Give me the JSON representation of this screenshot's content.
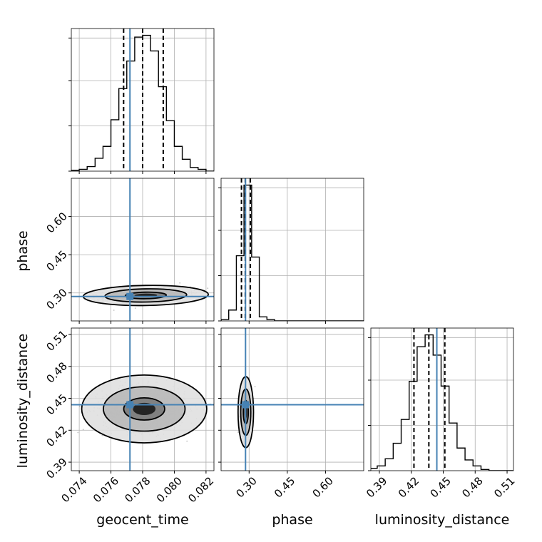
{
  "chart_data": {
    "type": "corner",
    "parameters": [
      "geocent_time",
      "phase",
      "luminosity_distance"
    ],
    "axis_labels": [
      "geocent_time",
      "phase",
      "luminosity_distance"
    ],
    "ranges": {
      "geocent_time": [
        0.0735,
        0.0825
      ],
      "phase": [
        0.19,
        0.75
      ],
      "luminosity_distance": [
        0.382,
        0.516
      ]
    },
    "ticks": {
      "geocent_time": {
        "values": [
          0.074,
          0.076,
          0.078,
          0.08,
          0.082
        ],
        "labels": [
          "0.074",
          "0.076",
          "0.078",
          "0.080",
          "0.082"
        ]
      },
      "phase": {
        "values": [
          0.3,
          0.45,
          0.6
        ],
        "labels": [
          "0.30",
          "0.45",
          "0.60"
        ]
      },
      "luminosity_distance": {
        "values": [
          0.39,
          0.42,
          0.45,
          0.48,
          0.51
        ],
        "labels": [
          "0.39",
          "0.42",
          "0.45",
          "0.48",
          "0.51"
        ]
      }
    },
    "truths": {
      "geocent_time": 0.0772,
      "phase": 0.286,
      "luminosity_distance": 0.444
    },
    "quantiles": {
      "geocent_time": [
        0.0768,
        0.078,
        0.0793
      ],
      "phase": [
        0.27,
        0.285,
        0.305
      ],
      "luminosity_distance": [
        0.4225,
        0.4365,
        0.4515
      ]
    },
    "histograms": {
      "geocent_time": {
        "edges": [
          0.0735,
          0.074,
          0.0745,
          0.075,
          0.0755,
          0.076,
          0.0765,
          0.077,
          0.0775,
          0.078,
          0.0785,
          0.079,
          0.0795,
          0.08,
          0.0805,
          0.081,
          0.0815,
          0.082,
          0.0825
        ],
        "counts": [
          1,
          2,
          5,
          14,
          27,
          56,
          90,
          120,
          146,
          148,
          131,
          92,
          55,
          27,
          13,
          4,
          2,
          0
        ]
      },
      "phase": {
        "edges": [
          0.19,
          0.22,
          0.25,
          0.28,
          0.31,
          0.34,
          0.37,
          0.4,
          0.43,
          0.46,
          0.49,
          0.52,
          0.55,
          0.58,
          0.61,
          0.64,
          0.67,
          0.7,
          0.73,
          0.76
        ],
        "counts": [
          1,
          8,
          48,
          100,
          47,
          3,
          1,
          0,
          0,
          0,
          0,
          0,
          0,
          0,
          0,
          0,
          0,
          0,
          0
        ]
      },
      "luminosity_distance": {
        "edges": [
          0.3805,
          0.388,
          0.3955,
          0.403,
          0.4105,
          0.418,
          0.4255,
          0.433,
          0.4405,
          0.448,
          0.4555,
          0.463,
          0.4705,
          0.478,
          0.4855,
          0.493,
          0.5005,
          0.508,
          0.5155
        ],
        "counts": [
          2,
          4,
          10,
          23,
          43,
          75,
          104,
          114,
          97,
          71,
          40,
          19,
          9,
          4,
          1,
          0,
          0,
          0
        ]
      }
    },
    "pairs": [
      {
        "x": "geocent_time",
        "y": "phase",
        "center": [
          0.0782,
          0.29
        ],
        "spread": [
          0.0013,
          0.013
        ],
        "corr": 0.3
      },
      {
        "x": "geocent_time",
        "y": "luminosity_distance",
        "center": [
          0.0781,
          0.44
        ],
        "spread": [
          0.0013,
          0.0105
        ],
        "corr": 0.0
      },
      {
        "x": "phase",
        "y": "luminosity_distance",
        "center": [
          0.287,
          0.437
        ],
        "spread": [
          0.01,
          0.011
        ],
        "corr": 0.0
      }
    ],
    "density_levels": [
      0.39,
      0.86,
      0.99
    ],
    "grid": true
  },
  "colors": {
    "truth": "#4682b4",
    "line": "#000000",
    "grid": "#b0b0b0",
    "points": "#4a4a4a"
  }
}
